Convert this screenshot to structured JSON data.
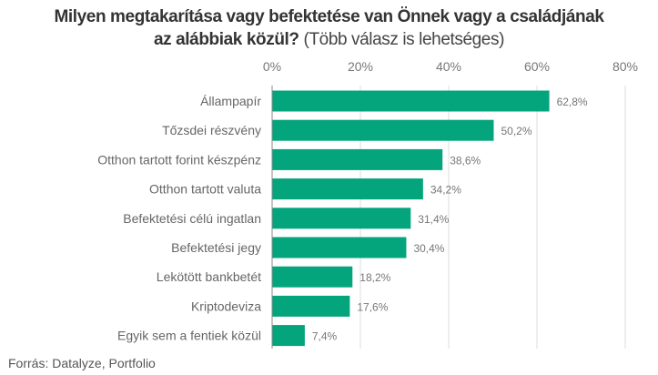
{
  "chart_data": {
    "type": "bar",
    "orientation": "horizontal",
    "title_bold_line1": "Milyen megtakarítása vagy befektetése van Önnek vagy a családjának",
    "title_bold_line2": "az alábbiak közül?",
    "title_note": "(Több válasz is lehetséges)",
    "categories": [
      "Állampapír",
      "Tőzsdei részvény",
      "Otthon tartott forint készpénz",
      "Otthon tartott valuta",
      "Befektetési célú ingatlan",
      "Befektetési jegy",
      "Lekötött bankbetét",
      "Kriptodeviza",
      "Egyik sem a fentiek közül"
    ],
    "values": [
      62.8,
      50.2,
      38.6,
      34.2,
      31.4,
      30.4,
      18.2,
      17.6,
      7.4
    ],
    "value_labels": [
      "62,8%",
      "50,2%",
      "38,6%",
      "34,2%",
      "31,4%",
      "30,4%",
      "18,2%",
      "17,6%",
      "7,4%"
    ],
    "xticks": [
      0,
      20,
      40,
      60,
      80
    ],
    "xtick_labels": [
      "0%",
      "20%",
      "40%",
      "60%",
      "80%"
    ],
    "xlim": [
      0,
      80
    ],
    "xlabel": "",
    "ylabel": "",
    "grid": true,
    "bar_color": "#04a47d",
    "source": "Forrás: Datalyze, Portfolio"
  }
}
